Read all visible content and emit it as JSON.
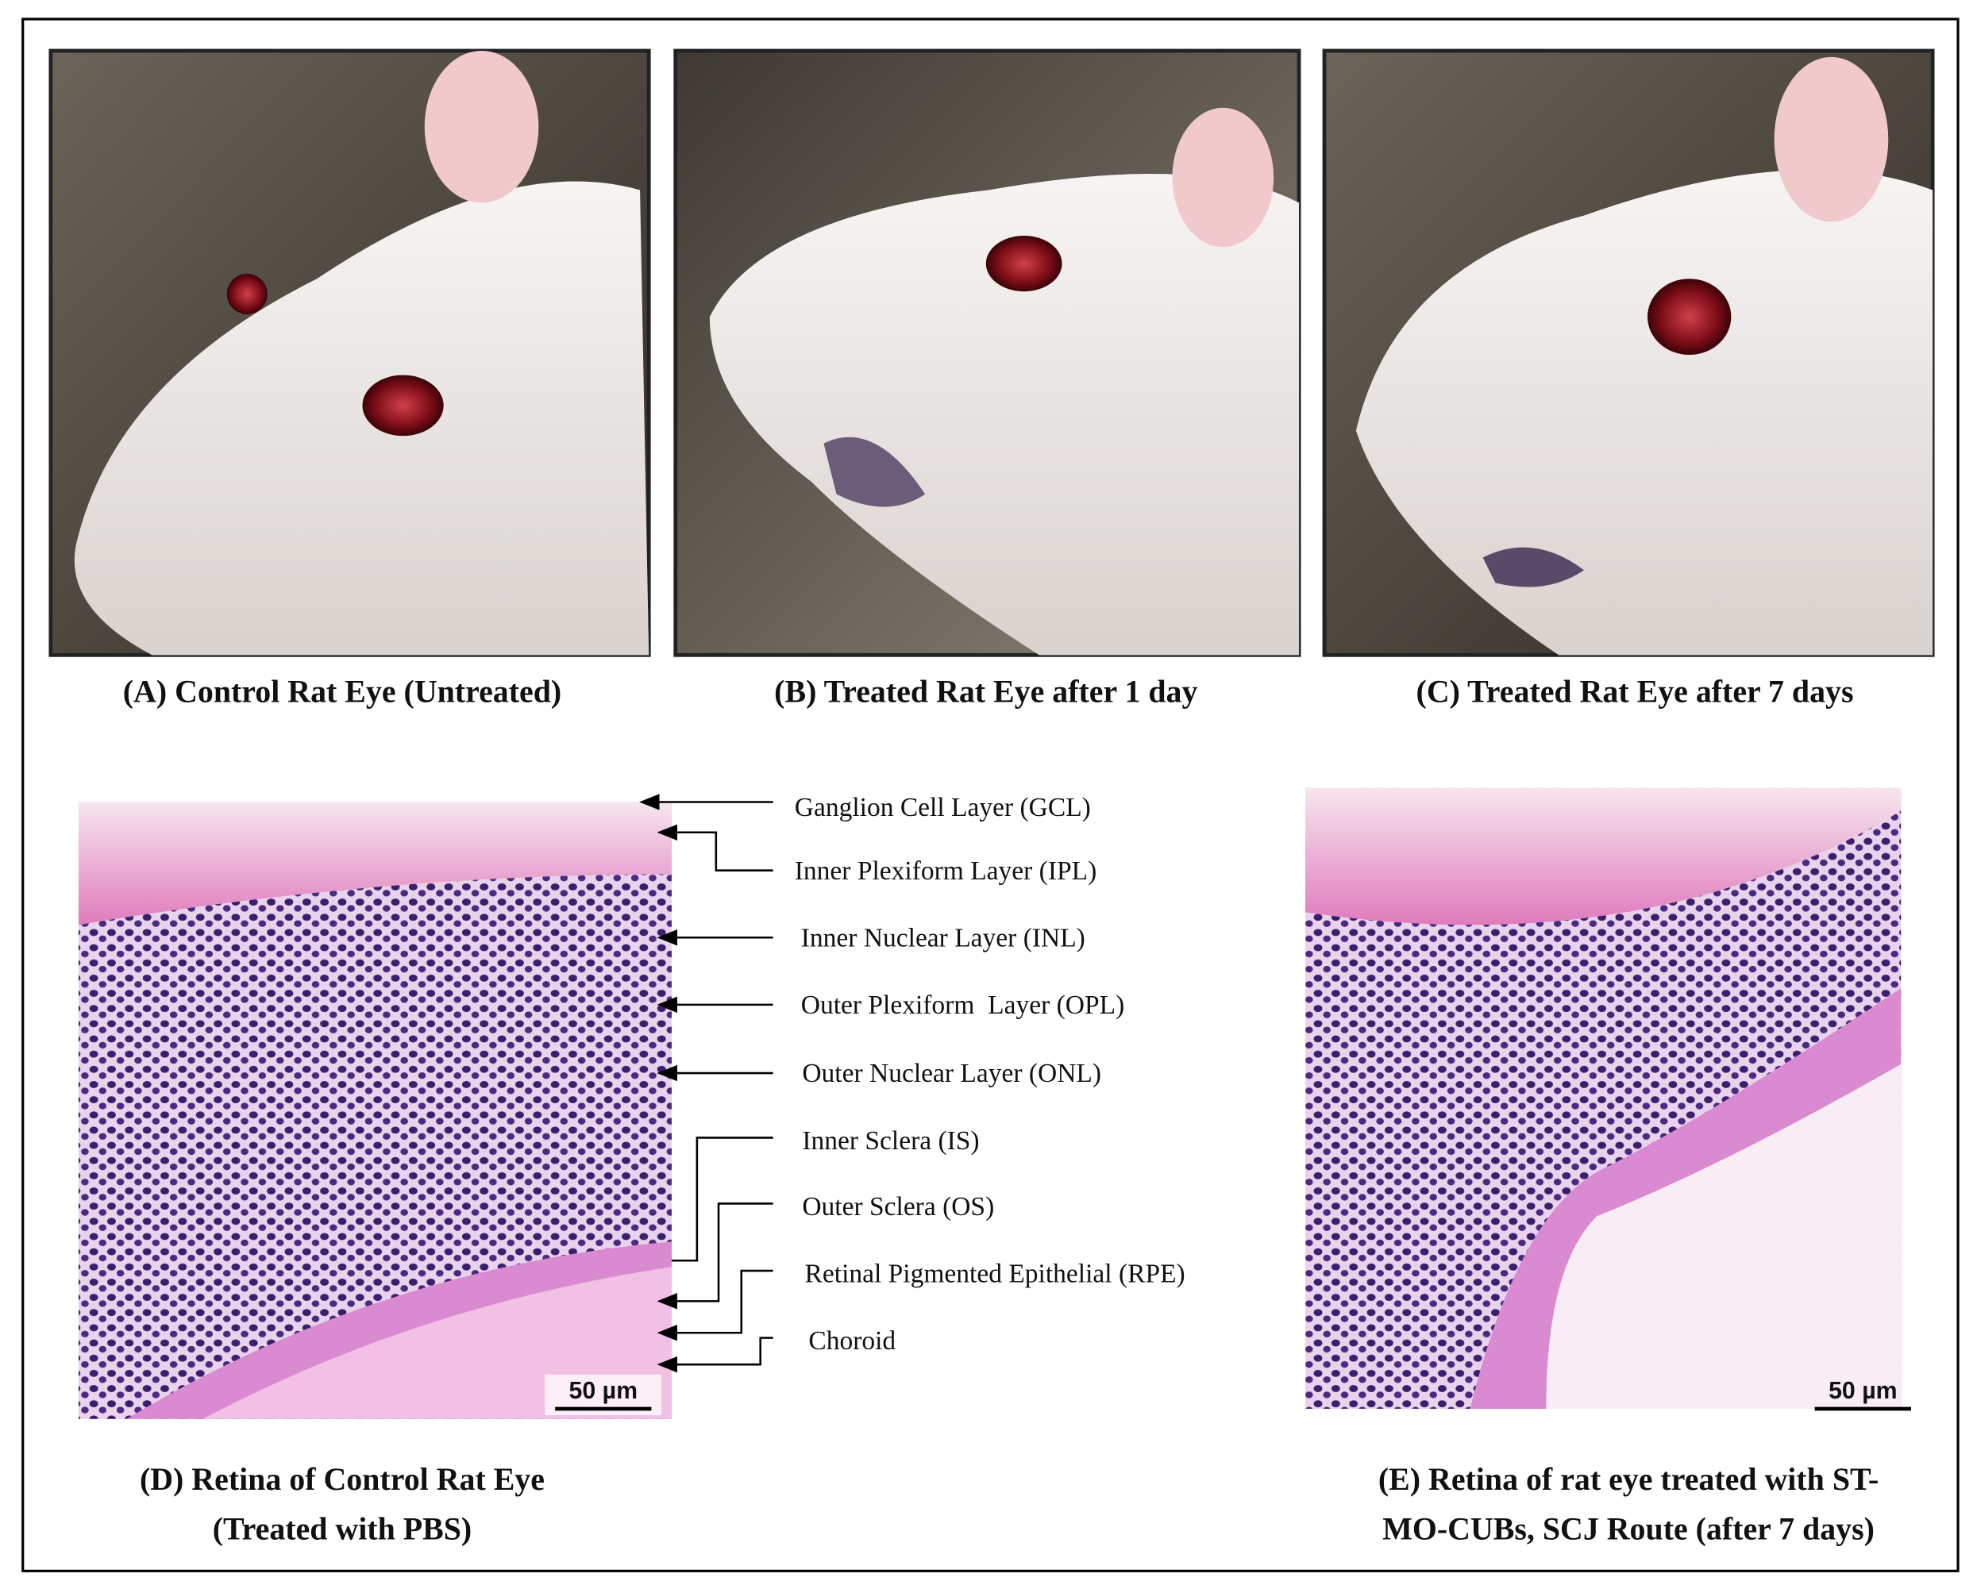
{
  "photos": [
    {
      "caption": "(A) Control Rat Eye (Untreated)"
    },
    {
      "caption": "(B) Treated Rat Eye after 1 day"
    },
    {
      "caption": "(C) Treated Rat Eye after 7 days"
    }
  ],
  "histology": [
    {
      "caption_lines": [
        "(D) Retina of Control Rat Eye",
        "(Treated with PBS)"
      ],
      "scale_bar": "50 µm"
    },
    {
      "caption_lines": [
        "(E) Retina of rat eye treated with ST-",
        "MO-CUBs, SCJ Route (after 7 days)"
      ],
      "scale_bar": "50 µm"
    }
  ],
  "layers": [
    "Ganglion Cell Layer (GCL)",
    "Inner Plexiform Layer (IPL)",
    "Inner Nuclear Layer (INL)",
    "Outer Plexiform  Layer (OPL)",
    "Outer Nuclear Layer (ONL)",
    "Inner Sclera (IS)",
    "Outer Sclera (OS)",
    "Retinal Pigmented Epithelial (RPE)",
    "Choroid"
  ]
}
